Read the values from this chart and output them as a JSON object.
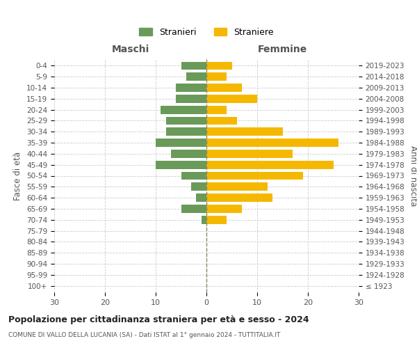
{
  "age_groups": [
    "100+",
    "95-99",
    "90-94",
    "85-89",
    "80-84",
    "75-79",
    "70-74",
    "65-69",
    "60-64",
    "55-59",
    "50-54",
    "45-49",
    "40-44",
    "35-39",
    "30-34",
    "25-29",
    "20-24",
    "15-19",
    "10-14",
    "5-9",
    "0-4"
  ],
  "birth_years": [
    "≤ 1923",
    "1924-1928",
    "1929-1933",
    "1934-1938",
    "1939-1943",
    "1944-1948",
    "1949-1953",
    "1954-1958",
    "1959-1963",
    "1964-1968",
    "1969-1973",
    "1974-1978",
    "1979-1983",
    "1984-1988",
    "1989-1993",
    "1994-1998",
    "1999-2003",
    "2004-2008",
    "2009-2013",
    "2014-2018",
    "2019-2023"
  ],
  "males": [
    0,
    0,
    0,
    0,
    0,
    0,
    1,
    5,
    2,
    3,
    5,
    10,
    7,
    10,
    8,
    8,
    9,
    6,
    6,
    4,
    5
  ],
  "females": [
    0,
    0,
    0,
    0,
    0,
    0,
    4,
    7,
    13,
    12,
    19,
    25,
    17,
    26,
    15,
    6,
    4,
    10,
    7,
    4,
    5
  ],
  "male_color": "#6a9a5a",
  "female_color": "#f5b800",
  "background_color": "#ffffff",
  "grid_color": "#cccccc",
  "title": "Popolazione per cittadinanza straniera per età e sesso - 2024",
  "subtitle": "COMUNE DI VALLO DELLA LUCANIA (SA) - Dati ISTAT al 1° gennaio 2024 - TUTTITALIA.IT",
  "xlabel_left": "Maschi",
  "xlabel_right": "Femmine",
  "ylabel_left": "Fasce di età",
  "ylabel_right": "Anni di nascita",
  "legend_male": "Stranieri",
  "legend_female": "Straniere",
  "xlim": 30,
  "bar_height": 0.75
}
